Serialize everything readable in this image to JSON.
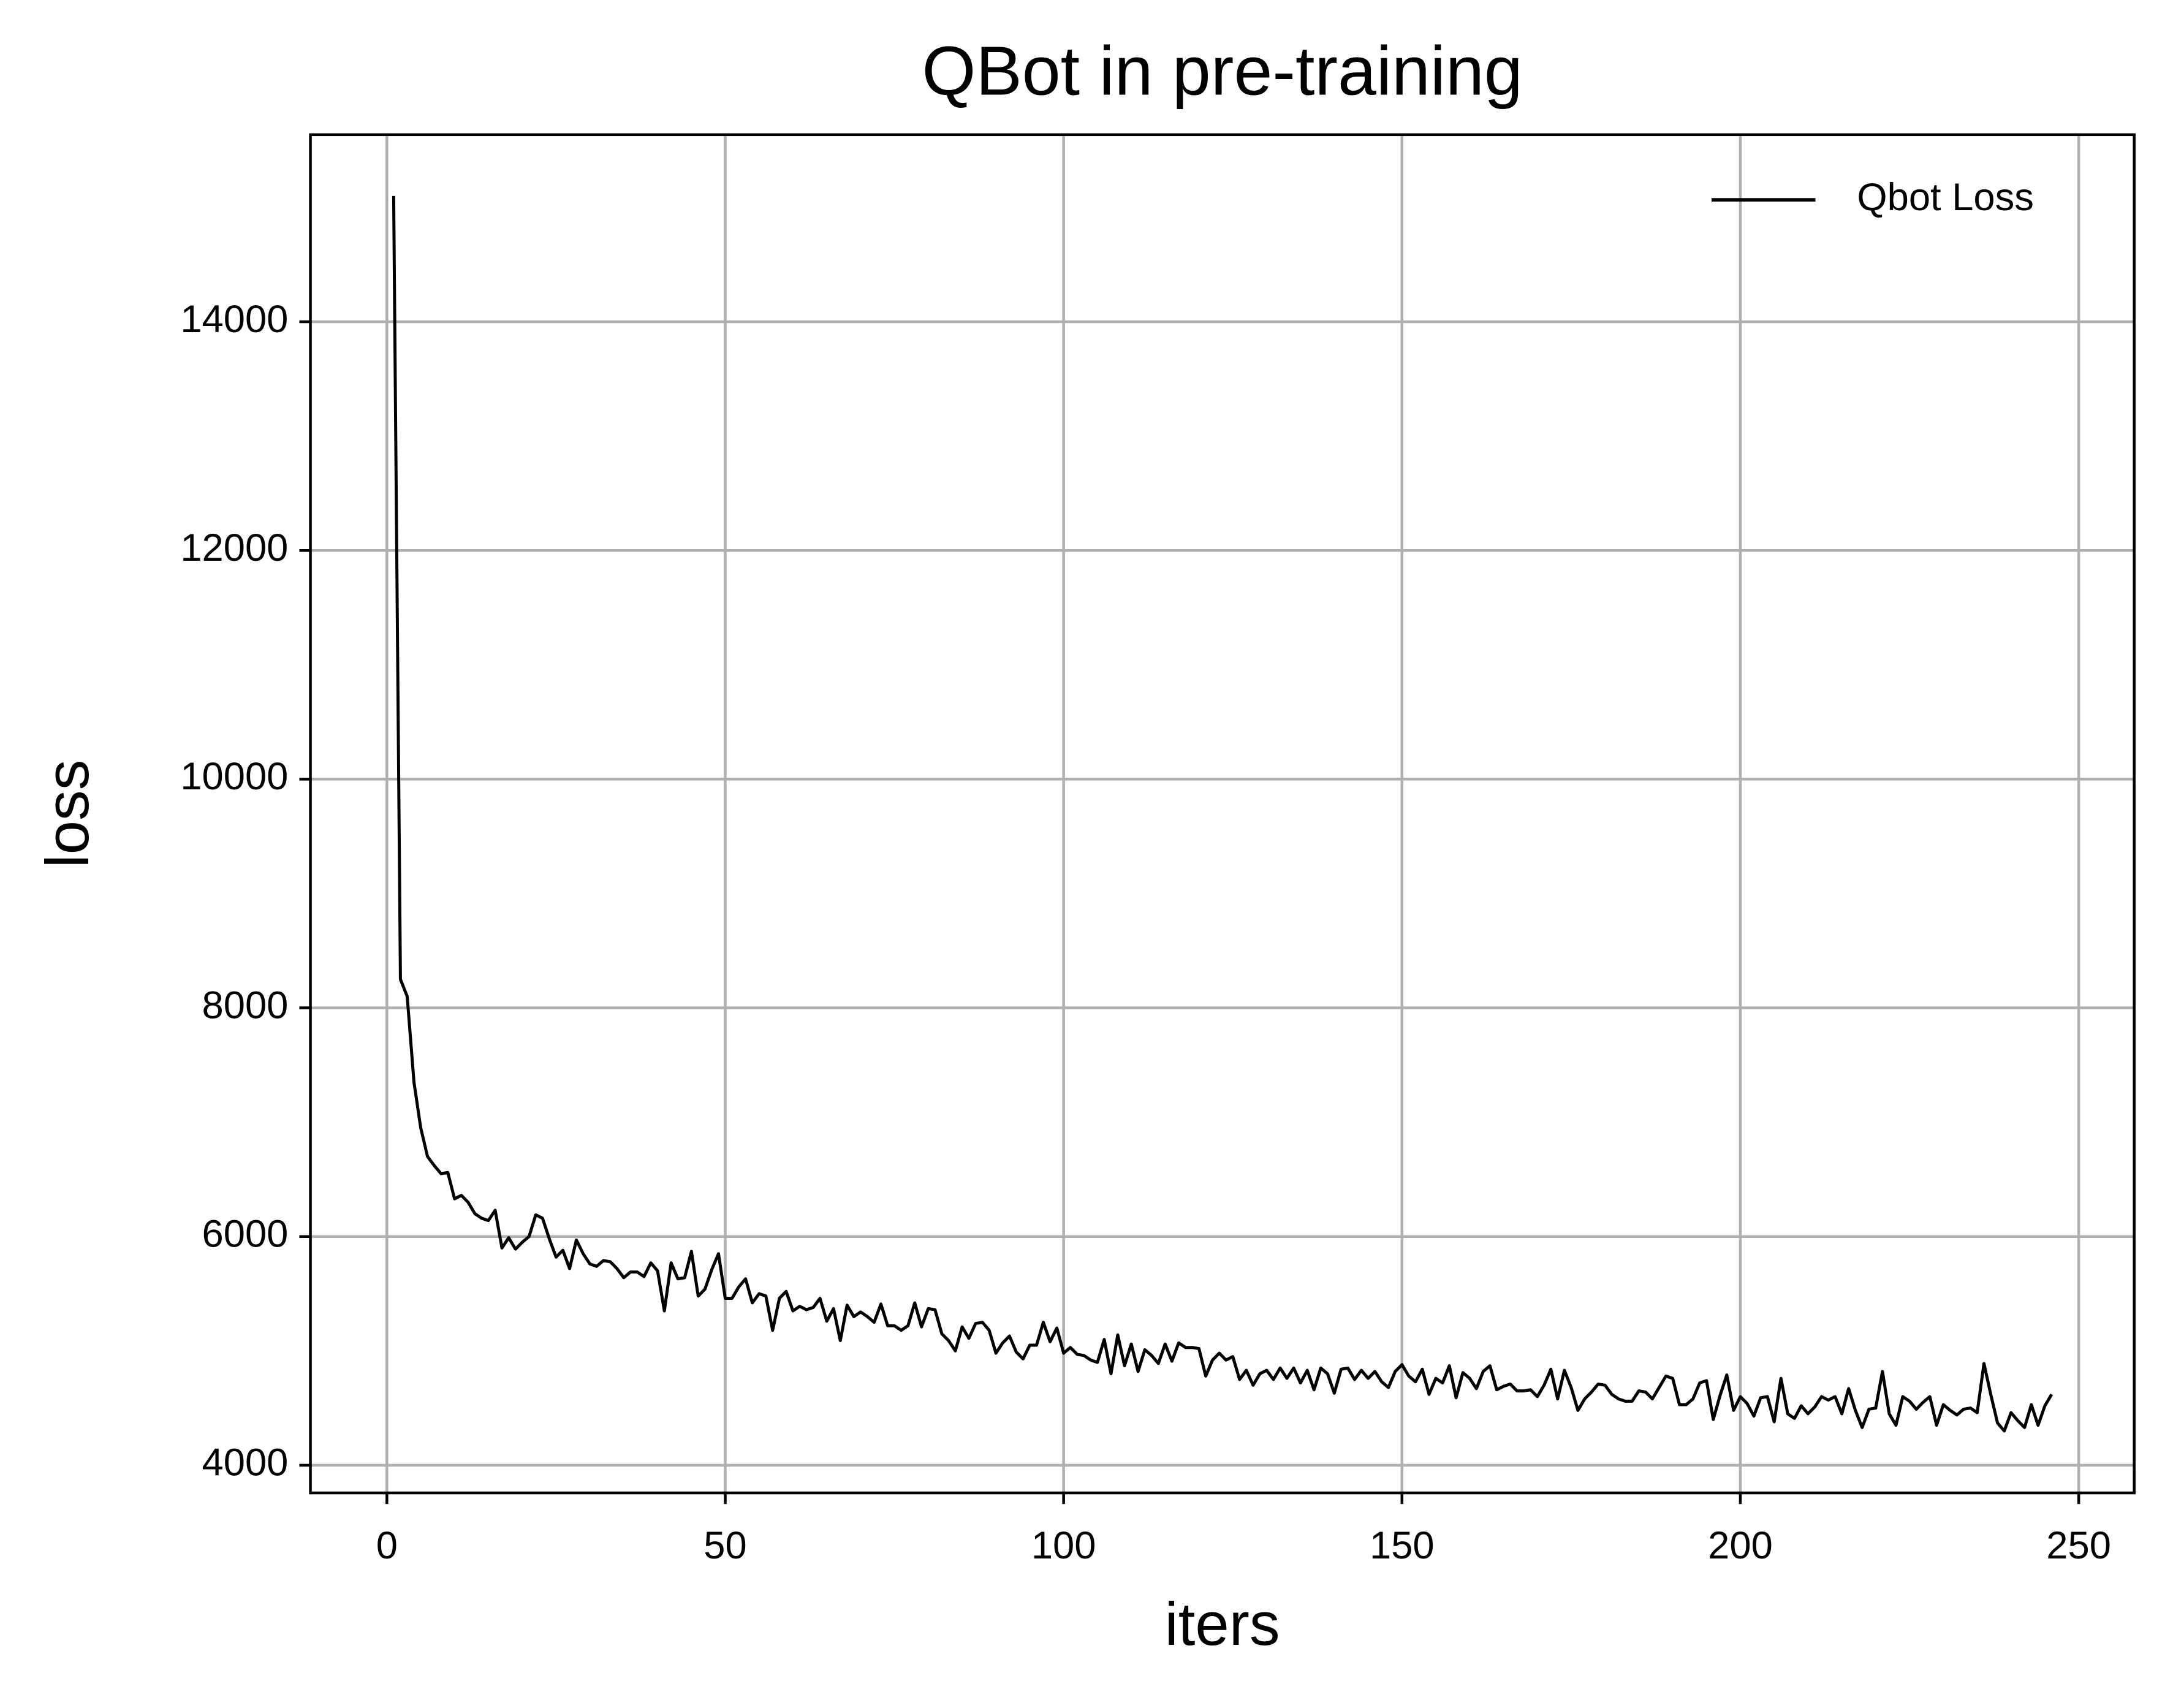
{
  "chart_data": {
    "type": "line",
    "title": "QBot in pre-training",
    "x_label": "iters",
    "y_label": "loss",
    "xlim": [
      -11.3,
      258.2
    ],
    "ylim": [
      3758,
      15636
    ],
    "xticks": [
      0,
      50,
      100,
      150,
      200,
      250
    ],
    "yticks": [
      4000,
      6000,
      8000,
      10000,
      12000,
      14000
    ],
    "grid": true,
    "legend_position": "upper right",
    "x": [
      1,
      2,
      3,
      4,
      5,
      6,
      7,
      8,
      9,
      10,
      11,
      12,
      13,
      14,
      15,
      16,
      17,
      18,
      19,
      20,
      21,
      22,
      23,
      24,
      25,
      26,
      27,
      28,
      29,
      30,
      31,
      32,
      33,
      34,
      35,
      36,
      37,
      38,
      39,
      40,
      41,
      42,
      43,
      44,
      45,
      46,
      47,
      48,
      49,
      50,
      51,
      52,
      53,
      54,
      55,
      56,
      57,
      58,
      59,
      60,
      61,
      62,
      63,
      64,
      65,
      66,
      67,
      68,
      69,
      70,
      71,
      72,
      73,
      74,
      75,
      76,
      77,
      78,
      79,
      80,
      81,
      82,
      83,
      84,
      85,
      86,
      87,
      88,
      89,
      90,
      91,
      92,
      93,
      94,
      95,
      96,
      97,
      98,
      99,
      100,
      101,
      102,
      103,
      104,
      105,
      106,
      107,
      108,
      109,
      110,
      111,
      112,
      113,
      114,
      115,
      116,
      117,
      118,
      119,
      120,
      121,
      122,
      123,
      124,
      125,
      126,
      127,
      128,
      129,
      130,
      131,
      132,
      133,
      134,
      135,
      136,
      137,
      138,
      139,
      140,
      141,
      142,
      143,
      144,
      145,
      146,
      147,
      148,
      149,
      150,
      151,
      152,
      153,
      154,
      155,
      156,
      157,
      158,
      159,
      160,
      161,
      162,
      163,
      164,
      165,
      166,
      167,
      168,
      169,
      170,
      171,
      172,
      173,
      174,
      175,
      176,
      177,
      178,
      179,
      180,
      181,
      182,
      183,
      184,
      185,
      186,
      187,
      188,
      189,
      190,
      191,
      192,
      193,
      194,
      195,
      196,
      197,
      198,
      199,
      200,
      201,
      202,
      203,
      204,
      205,
      206,
      207,
      208,
      209,
      210,
      211,
      212,
      213,
      214,
      215,
      216,
      217,
      218,
      219,
      220,
      221,
      222,
      223,
      224,
      225,
      226,
      227,
      228,
      229,
      230,
      231,
      232,
      233,
      234,
      235,
      236,
      237,
      238,
      239,
      240,
      241,
      242,
      243,
      244,
      245,
      246
    ],
    "series": [
      {
        "name": "Qbot Loss",
        "color": "#000000",
        "values": [
          15100,
          8250,
          8100,
          7350,
          6950,
          6700,
          6620,
          6550,
          6560,
          6330,
          6360,
          6300,
          6200,
          6160,
          6140,
          6230,
          5900,
          5990,
          5890,
          5950,
          6000,
          6190,
          6160,
          5980,
          5820,
          5880,
          5720,
          5970,
          5850,
          5760,
          5740,
          5790,
          5780,
          5720,
          5640,
          5690,
          5690,
          5650,
          5770,
          5700,
          5350,
          5770,
          5630,
          5640,
          5870,
          5480,
          5540,
          5710,
          5850,
          5460,
          5460,
          5560,
          5630,
          5420,
          5500,
          5480,
          5180,
          5460,
          5520,
          5350,
          5390,
          5360,
          5380,
          5460,
          5260,
          5370,
          5090,
          5400,
          5300,
          5340,
          5300,
          5250,
          5410,
          5220,
          5220,
          5180,
          5220,
          5420,
          5210,
          5370,
          5360,
          5150,
          5090,
          5000,
          5210,
          5110,
          5240,
          5250,
          5180,
          4980,
          5070,
          5130,
          4990,
          4930,
          5050,
          5050,
          5250,
          5080,
          5200,
          4980,
          5030,
          4970,
          4960,
          4920,
          4900,
          5100,
          4800,
          5140,
          4870,
          5060,
          4820,
          5010,
          4960,
          4890,
          5060,
          4910,
          5070,
          5030,
          5030,
          5020,
          4780,
          4920,
          4980,
          4920,
          4950,
          4750,
          4830,
          4700,
          4800,
          4830,
          4750,
          4850,
          4760,
          4850,
          4720,
          4830,
          4660,
          4850,
          4800,
          4630,
          4840,
          4850,
          4750,
          4830,
          4760,
          4820,
          4730,
          4680,
          4820,
          4880,
          4780,
          4730,
          4840,
          4620,
          4760,
          4720,
          4870,
          4590,
          4810,
          4760,
          4670,
          4820,
          4870,
          4660,
          4690,
          4710,
          4650,
          4650,
          4660,
          4600,
          4700,
          4840,
          4580,
          4830,
          4680,
          4480,
          4580,
          4640,
          4710,
          4700,
          4620,
          4580,
          4560,
          4560,
          4650,
          4640,
          4580,
          4680,
          4780,
          4760,
          4530,
          4530,
          4580,
          4720,
          4740,
          4400,
          4610,
          4790,
          4480,
          4600,
          4540,
          4430,
          4590,
          4600,
          4380,
          4760,
          4450,
          4410,
          4520,
          4450,
          4510,
          4600,
          4570,
          4600,
          4450,
          4670,
          4480,
          4330,
          4490,
          4500,
          4820,
          4450,
          4350,
          4600,
          4560,
          4490,
          4550,
          4600,
          4350,
          4530,
          4480,
          4440,
          4490,
          4500,
          4460,
          4890,
          4620,
          4370,
          4300,
          4460,
          4390,
          4330,
          4530,
          4350,
          4520,
          4620
        ]
      }
    ]
  }
}
